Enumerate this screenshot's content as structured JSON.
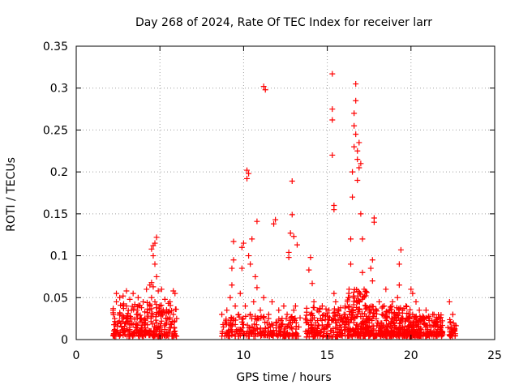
{
  "chart_data": {
    "type": "scatter",
    "title": "Day 268 of 2024, Rate Of TEC Index for receiver larr",
    "xlabel": "GPS time / hours",
    "ylabel": "ROTI / TECUs",
    "xlim": [
      0,
      25
    ],
    "ylim": [
      0,
      0.35
    ],
    "xticks": [
      0,
      5,
      10,
      15,
      20,
      25
    ],
    "xtick_labels": [
      "0",
      "5",
      "10",
      "15",
      "20",
      "25"
    ],
    "yticks": [
      0,
      0.05,
      0.1,
      0.15,
      0.2,
      0.25,
      0.3,
      0.35
    ],
    "ytick_labels": [
      "0",
      "0.05",
      "0.1",
      "0.15",
      "0.2",
      "0.25",
      "0.3",
      "0.35"
    ],
    "grid": true,
    "marker": "+",
    "color": "#ff0000",
    "series": [
      {
        "name": "ROTI",
        "points": [
          [
            2.2,
            0.035
          ],
          [
            2.3,
            0.025
          ],
          [
            2.3,
            0.012
          ],
          [
            2.4,
            0.055
          ],
          [
            2.4,
            0.045
          ],
          [
            2.5,
            0.02
          ],
          [
            2.5,
            0.008
          ],
          [
            2.6,
            0.05
          ],
          [
            2.6,
            0.032
          ],
          [
            2.7,
            0.015
          ],
          [
            2.8,
            0.052
          ],
          [
            2.8,
            0.028
          ],
          [
            2.9,
            0.01
          ],
          [
            3.0,
            0.058
          ],
          [
            3.0,
            0.04
          ],
          [
            3.1,
            0.022
          ],
          [
            3.2,
            0.048
          ],
          [
            3.2,
            0.012
          ],
          [
            3.3,
            0.035
          ],
          [
            3.4,
            0.055
          ],
          [
            3.4,
            0.018
          ],
          [
            3.5,
            0.042
          ],
          [
            3.6,
            0.03
          ],
          [
            3.6,
            0.009
          ],
          [
            3.7,
            0.05
          ],
          [
            3.8,
            0.025
          ],
          [
            3.9,
            0.038
          ],
          [
            3.9,
            0.014
          ],
          [
            4.0,
            0.045
          ],
          [
            4.1,
            0.02
          ],
          [
            4.1,
            0.033
          ],
          [
            4.2,
            0.06
          ],
          [
            4.3,
            0.028
          ],
          [
            4.3,
            0.011
          ],
          [
            4.4,
            0.065
          ],
          [
            4.4,
            0.04
          ],
          [
            4.5,
            0.068
          ],
          [
            4.5,
            0.05
          ],
          [
            4.5,
            0.108
          ],
          [
            4.6,
            0.112
          ],
          [
            4.6,
            0.1
          ],
          [
            4.6,
            0.063
          ],
          [
            4.7,
            0.115
          ],
          [
            4.7,
            0.09
          ],
          [
            4.7,
            0.045
          ],
          [
            4.8,
            0.122
          ],
          [
            4.8,
            0.075
          ],
          [
            4.8,
            0.03
          ],
          [
            4.9,
            0.058
          ],
          [
            4.9,
            0.015
          ],
          [
            5.0,
            0.04
          ],
          [
            5.1,
            0.06
          ],
          [
            5.1,
            0.022
          ],
          [
            5.2,
            0.035
          ],
          [
            5.3,
            0.048
          ],
          [
            5.3,
            0.012
          ],
          [
            5.4,
            0.02
          ],
          [
            5.5,
            0.032
          ],
          [
            5.6,
            0.045
          ],
          [
            5.7,
            0.018
          ],
          [
            5.8,
            0.058
          ],
          [
            5.8,
            0.03
          ],
          [
            5.9,
            0.055
          ],
          [
            5.9,
            0.01
          ],
          [
            6.0,
            0.025
          ],
          [
            8.7,
            0.03
          ],
          [
            8.8,
            0.015
          ],
          [
            8.9,
            0.02
          ],
          [
            9.0,
            0.035
          ],
          [
            9.1,
            0.01
          ],
          [
            9.2,
            0.05
          ],
          [
            9.3,
            0.065
          ],
          [
            9.3,
            0.085
          ],
          [
            9.4,
            0.095
          ],
          [
            9.4,
            0.117
          ],
          [
            9.4,
            0.025
          ],
          [
            9.5,
            0.04
          ],
          [
            9.6,
            0.012
          ],
          [
            9.7,
            0.03
          ],
          [
            9.8,
            0.055
          ],
          [
            9.9,
            0.085
          ],
          [
            9.9,
            0.11
          ],
          [
            10.0,
            0.115
          ],
          [
            10.0,
            0.018
          ],
          [
            10.1,
            0.04
          ],
          [
            10.2,
            0.192
          ],
          [
            10.2,
            0.202
          ],
          [
            10.3,
            0.198
          ],
          [
            10.3,
            0.1
          ],
          [
            10.4,
            0.09
          ],
          [
            10.4,
            0.03
          ],
          [
            10.5,
            0.12
          ],
          [
            10.5,
            0.015
          ],
          [
            10.6,
            0.045
          ],
          [
            10.7,
            0.075
          ],
          [
            10.8,
            0.141
          ],
          [
            10.8,
            0.062
          ],
          [
            10.9,
            0.025
          ],
          [
            11.0,
            0.035
          ],
          [
            11.1,
            0.01
          ],
          [
            11.2,
            0.302
          ],
          [
            11.2,
            0.05
          ],
          [
            11.3,
            0.298
          ],
          [
            11.4,
            0.02
          ],
          [
            11.5,
            0.03
          ],
          [
            11.6,
            0.015
          ],
          [
            11.7,
            0.045
          ],
          [
            11.8,
            0.138
          ],
          [
            11.9,
            0.143
          ],
          [
            12.0,
            0.02
          ],
          [
            12.1,
            0.035
          ],
          [
            12.2,
            0.01
          ],
          [
            12.3,
            0.025
          ],
          [
            12.4,
            0.04
          ],
          [
            12.5,
            0.015
          ],
          [
            12.6,
            0.03
          ],
          [
            12.7,
            0.098
          ],
          [
            12.7,
            0.104
          ],
          [
            12.8,
            0.127
          ],
          [
            12.8,
            0.02
          ],
          [
            12.9,
            0.189
          ],
          [
            12.9,
            0.149
          ],
          [
            13.0,
            0.123
          ],
          [
            13.0,
            0.035
          ],
          [
            13.1,
            0.04
          ],
          [
            13.2,
            0.113
          ],
          [
            13.3,
            0.015
          ],
          [
            13.7,
            0.025
          ],
          [
            13.8,
            0.01
          ],
          [
            13.9,
            0.083
          ],
          [
            14.0,
            0.098
          ],
          [
            14.0,
            0.03
          ],
          [
            14.1,
            0.067
          ],
          [
            14.1,
            0.015
          ],
          [
            14.2,
            0.045
          ],
          [
            14.3,
            0.02
          ],
          [
            14.4,
            0.035
          ],
          [
            14.5,
            0.008
          ],
          [
            14.6,
            0.025
          ],
          [
            14.7,
            0.04
          ],
          [
            14.8,
            0.012
          ],
          [
            14.9,
            0.028
          ],
          [
            15.0,
            0.018
          ],
          [
            15.1,
            0.035
          ],
          [
            15.2,
            0.01
          ],
          [
            15.3,
            0.317
          ],
          [
            15.3,
            0.275
          ],
          [
            15.3,
            0.262
          ],
          [
            15.3,
            0.22
          ],
          [
            15.4,
            0.155
          ],
          [
            15.4,
            0.16
          ],
          [
            15.4,
            0.055
          ],
          [
            15.5,
            0.045
          ],
          [
            15.5,
            0.02
          ],
          [
            15.6,
            0.03
          ],
          [
            15.7,
            0.012
          ],
          [
            15.8,
            0.038
          ],
          [
            15.9,
            0.022
          ],
          [
            16.0,
            0.03
          ],
          [
            16.1,
            0.015
          ],
          [
            16.2,
            0.045
          ],
          [
            16.3,
            0.06
          ],
          [
            16.4,
            0.09
          ],
          [
            16.4,
            0.12
          ],
          [
            16.5,
            0.17
          ],
          [
            16.5,
            0.2
          ],
          [
            16.6,
            0.23
          ],
          [
            16.6,
            0.255
          ],
          [
            16.6,
            0.27
          ],
          [
            16.7,
            0.305
          ],
          [
            16.7,
            0.285
          ],
          [
            16.7,
            0.245
          ],
          [
            16.8,
            0.225
          ],
          [
            16.8,
            0.215
          ],
          [
            16.8,
            0.19
          ],
          [
            16.9,
            0.235
          ],
          [
            16.9,
            0.205
          ],
          [
            17.0,
            0.21
          ],
          [
            17.0,
            0.15
          ],
          [
            17.1,
            0.12
          ],
          [
            17.1,
            0.08
          ],
          [
            17.2,
            0.06
          ],
          [
            17.3,
            0.04
          ],
          [
            17.4,
            0.025
          ],
          [
            17.5,
            0.015
          ],
          [
            17.6,
            0.085
          ],
          [
            17.7,
            0.095
          ],
          [
            17.7,
            0.07
          ],
          [
            17.8,
            0.14
          ],
          [
            17.8,
            0.145
          ],
          [
            17.9,
            0.035
          ],
          [
            18.0,
            0.02
          ],
          [
            18.1,
            0.045
          ],
          [
            18.2,
            0.01
          ],
          [
            18.3,
            0.03
          ],
          [
            18.4,
            0.04
          ],
          [
            18.5,
            0.06
          ],
          [
            18.6,
            0.015
          ],
          [
            18.7,
            0.035
          ],
          [
            18.8,
            0.02
          ],
          [
            18.9,
            0.045
          ],
          [
            19.0,
            0.01
          ],
          [
            19.1,
            0.03
          ],
          [
            19.2,
            0.05
          ],
          [
            19.3,
            0.065
          ],
          [
            19.3,
            0.09
          ],
          [
            19.4,
            0.107
          ],
          [
            19.4,
            0.02
          ],
          [
            19.5,
            0.035
          ],
          [
            19.6,
            0.012
          ],
          [
            19.7,
            0.04
          ],
          [
            19.8,
            0.025
          ],
          [
            19.9,
            0.015
          ],
          [
            20.0,
            0.06
          ],
          [
            20.1,
            0.055
          ],
          [
            20.1,
            0.03
          ],
          [
            20.2,
            0.01
          ],
          [
            20.3,
            0.045
          ],
          [
            20.4,
            0.02
          ],
          [
            20.5,
            0.035
          ],
          [
            20.6,
            0.012
          ],
          [
            20.7,
            0.028
          ],
          [
            20.8,
            0.018
          ],
          [
            20.9,
            0.035
          ],
          [
            21.0,
            0.01
          ],
          [
            21.1,
            0.025
          ],
          [
            21.2,
            0.015
          ],
          [
            21.3,
            0.03
          ],
          [
            21.4,
            0.008
          ],
          [
            21.5,
            0.02
          ],
          [
            21.6,
            0.012
          ],
          [
            21.7,
            0.025
          ],
          [
            21.8,
            0.01
          ],
          [
            22.3,
            0.045
          ],
          [
            22.4,
            0.015
          ],
          [
            22.5,
            0.03
          ],
          [
            22.6,
            0.01
          ]
        ],
        "dense_bands": [
          {
            "x": [
              2.2,
              6.0
            ],
            "y": [
              0.004,
              0.045
            ],
            "n": 260
          },
          {
            "x": [
              8.7,
              10.6
            ],
            "y": [
              0.004,
              0.03
            ],
            "n": 80
          },
          {
            "x": [
              10.6,
              12.2
            ],
            "y": [
              0.004,
              0.028
            ],
            "n": 70
          },
          {
            "x": [
              12.2,
              13.4
            ],
            "y": [
              0.004,
              0.03
            ],
            "n": 60
          },
          {
            "x": [
              13.7,
              16.2
            ],
            "y": [
              0.003,
              0.04
            ],
            "n": 150
          },
          {
            "x": [
              16.2,
              17.4
            ],
            "y": [
              0.004,
              0.06
            ],
            "n": 150
          },
          {
            "x": [
              17.4,
              20.0
            ],
            "y": [
              0.004,
              0.04
            ],
            "n": 260
          },
          {
            "x": [
              20.0,
              21.9
            ],
            "y": [
              0.004,
              0.03
            ],
            "n": 160
          },
          {
            "x": [
              22.2,
              22.7
            ],
            "y": [
              0.004,
              0.025
            ],
            "n": 30
          }
        ]
      }
    ]
  }
}
